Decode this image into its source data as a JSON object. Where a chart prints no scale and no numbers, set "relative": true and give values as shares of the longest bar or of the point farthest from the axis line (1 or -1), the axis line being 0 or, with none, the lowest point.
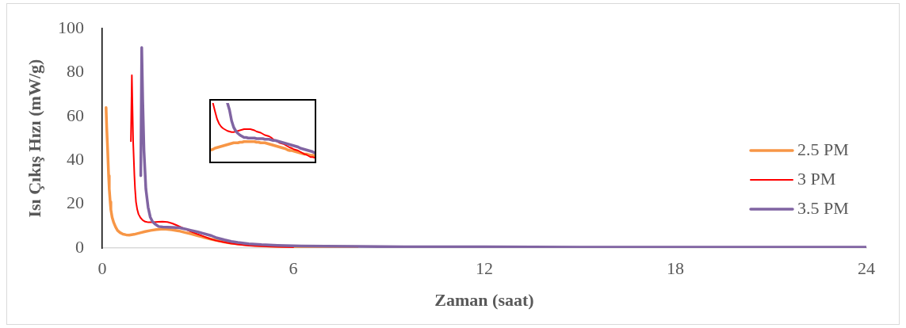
{
  "chart_data": [
    {
      "type": "line",
      "xlabel": "Zaman (saat)",
      "ylabel": "Isı Çıkış Hızı (mW/g)",
      "xlim": [
        0,
        24
      ],
      "ylim": [
        0,
        100
      ],
      "xticks": [
        0,
        6,
        12,
        18,
        24
      ],
      "yticks": [
        0,
        20,
        40,
        60,
        80,
        100
      ],
      "legend": "right",
      "series": [
        {
          "name": "2.5 PM",
          "color": "#f79646",
          "x": [
            0.12,
            0.14,
            0.17,
            0.2,
            0.22,
            0.25,
            0.27,
            0.31,
            0.36,
            0.42,
            0.48,
            0.56,
            0.65,
            0.75,
            0.85,
            1,
            1.19,
            1.35,
            1.52,
            1.7,
            1.85,
            2,
            2.18,
            2.4,
            2.59,
            2.8,
            3,
            3.2,
            3.43,
            3.64,
            3.84,
            4.05,
            4.26,
            4.6,
            5,
            5.5,
            6,
            7,
            8
          ],
          "values": [
            64,
            55,
            44.6,
            33,
            27,
            21,
            17.5,
            14,
            11.6,
            9.5,
            8,
            7,
            6.3,
            6,
            5.9,
            6.2,
            6.9,
            7.5,
            8,
            8.4,
            8.6,
            8.6,
            8.3,
            7.8,
            7.1,
            6.4,
            5.6,
            4.8,
            4,
            3.3,
            2.7,
            2.2,
            1.9,
            1.4,
            1,
            0.7,
            0.5,
            0.4,
            0.3
          ]
        },
        {
          "name": "3 PM",
          "color": "#ff0000",
          "x": [
            0.9,
            0.93,
            0.97,
            1.01,
            1.03,
            1.06,
            1.1,
            1.14,
            1.2,
            1.27,
            1.35,
            1.45,
            1.6,
            1.75,
            1.89,
            2.05,
            2.2,
            2.35,
            2.43,
            2.6,
            2.8,
            3,
            3.2,
            3.4,
            3.59,
            3.8,
            4,
            4.26,
            4.6,
            5,
            5.5,
            6
          ],
          "values": [
            48.7,
            78.8,
            48.7,
            33,
            27,
            21,
            17.5,
            15.4,
            13.8,
            12.7,
            12,
            11.7,
            11.7,
            11.9,
            12,
            11.8,
            11.2,
            10.3,
            9.8,
            8.6,
            7.4,
            6.3,
            5.2,
            4.1,
            3.3,
            2.7,
            2.2,
            1.6,
            1.1,
            0.8,
            0.5,
            0.4
          ]
        },
        {
          "name": "3.5 PM",
          "color": "#8064a2",
          "x": [
            1.21,
            1.24,
            1.27,
            1.31,
            1.37,
            1.44,
            1.51,
            1.58,
            1.65,
            1.77,
            1.9,
            2.05,
            2.2,
            2.43,
            2.6,
            2.8,
            3,
            3.2,
            3.43,
            3.6,
            3.84,
            4.05,
            4.26,
            4.6,
            5,
            5.5,
            6.25,
            7,
            8,
            10,
            12,
            15,
            18,
            21,
            24
          ],
          "values": [
            33,
            91.4,
            68,
            44.6,
            26.9,
            18.6,
            14,
            12,
            11,
            9.8,
            9.6,
            9.5,
            9.4,
            9.2,
            8.7,
            8,
            7.3,
            6.5,
            5.6,
            4.6,
            3.7,
            3,
            2.5,
            1.9,
            1.5,
            1.2,
            0.9,
            0.8,
            0.7,
            0.5,
            0.5,
            0.4,
            0.4,
            0.4,
            0.4
          ]
        }
      ]
    },
    {
      "type": "line",
      "relative": true,
      "categories": [
        null,
        null,
        null,
        null,
        null,
        null,
        null,
        null,
        null,
        null,
        null,
        null,
        null,
        null,
        null,
        null,
        null,
        null,
        null,
        null,
        null,
        null,
        null,
        null,
        null,
        null,
        null,
        null,
        null,
        null,
        null,
        null,
        null,
        null,
        null,
        null,
        null,
        null,
        null,
        null,
        null,
        null,
        null,
        null,
        null,
        null,
        null,
        null,
        null,
        null,
        null
      ],
      "series": [
        {
          "color": "#f79646",
          "values": [
            0.21,
            0.22,
            0.24,
            0.25,
            0.26,
            0.27,
            0.28,
            0.29,
            0.3,
            0.31,
            0.32,
            0.33,
            0.33,
            0.33,
            0.34,
            0.34,
            0.35,
            0.35,
            0.35,
            0.35,
            0.35,
            0.35,
            0.34,
            0.34,
            0.33,
            0.33,
            0.33,
            0.32,
            0.31,
            0.3,
            0.29,
            0.28,
            0.27,
            0.26,
            0.25,
            0.24,
            0.23,
            0.21,
            0.2,
            0.2,
            0.19,
            0.18,
            0.17,
            0.16,
            0.15,
            0.14,
            0.14,
            0.13,
            0.12,
            0.12,
            0.11
          ]
        },
        {
          "color": "#ff0000",
          "values": [
            null,
            1,
            0.86,
            0.73,
            0.65,
            0.6,
            0.57,
            0.55,
            0.53,
            0.52,
            0.51,
            0.51,
            0.52,
            0.53,
            0.54,
            0.55,
            0.56,
            0.56,
            0.56,
            0.56,
            0.55,
            0.54,
            0.52,
            0.51,
            0.5,
            0.48,
            0.46,
            0.45,
            0.44,
            0.42,
            0.39,
            0.37,
            0.35,
            0.33,
            0.32,
            0.31,
            0.29,
            0.27,
            0.25,
            0.24,
            0.22,
            0.21,
            0.2,
            0.18,
            0.16,
            0.14,
            0.13,
            0.11,
            0.09,
            0.09,
            0.08
          ]
        },
        {
          "color": "#8064a2",
          "values": [
            null,
            null,
            null,
            null,
            null,
            null,
            null,
            null,
            1,
            0.88,
            0.7,
            0.59,
            0.53,
            0.49,
            0.46,
            0.44,
            0.42,
            0.42,
            0.41,
            0.41,
            0.41,
            0.41,
            0.4,
            0.4,
            0.4,
            0.4,
            0.39,
            0.39,
            0.39,
            0.38,
            0.37,
            0.37,
            0.36,
            0.35,
            0.34,
            0.33,
            0.32,
            0.31,
            0.3,
            0.29,
            0.28,
            0.27,
            0.26,
            0.24,
            0.23,
            0.22,
            0.21,
            0.2,
            0.19,
            0.18,
            0.16
          ]
        }
      ]
    }
  ]
}
